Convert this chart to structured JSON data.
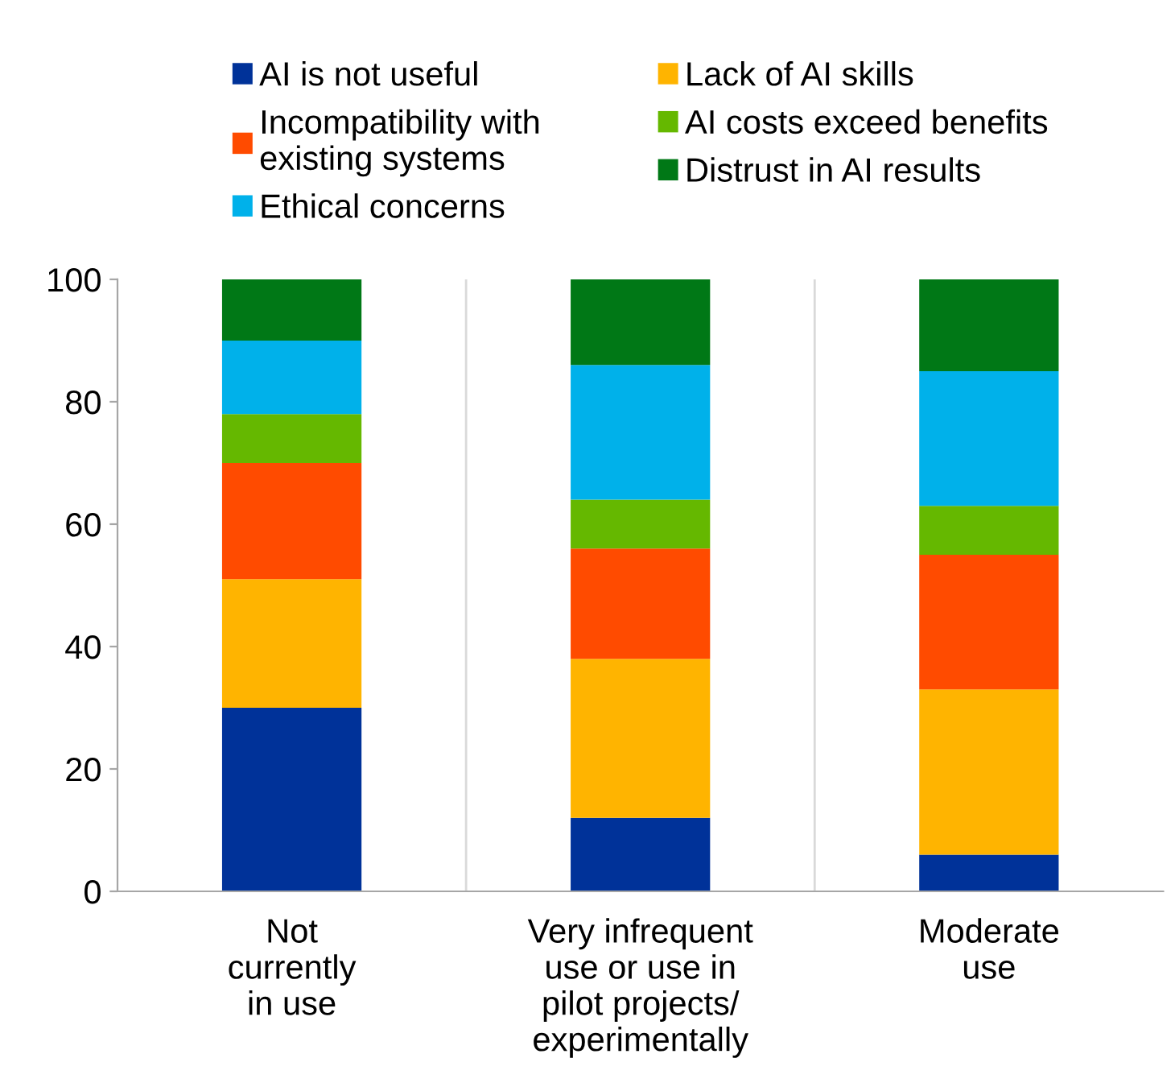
{
  "chart_data": {
    "type": "bar",
    "stacked": true,
    "categories": [
      "Not\ncurrently\nin use",
      "Very infrequent\nuse or use in\npilot projects/\nexperimentally",
      "Moderate\nuse"
    ],
    "series": [
      {
        "name": "AI is not useful",
        "color": "#003299",
        "values": [
          30,
          12,
          6
        ]
      },
      {
        "name": "Lack of AI skills",
        "color": "#ffb400",
        "values": [
          21,
          26,
          27
        ]
      },
      {
        "name": "Incompatibility with\nexisting systems",
        "color": "#ff4b00",
        "values": [
          19,
          18,
          22
        ]
      },
      {
        "name": "AI costs exceed benefits",
        "color": "#65b800",
        "values": [
          8,
          8,
          8
        ]
      },
      {
        "name": "Ethical concerns",
        "color": "#00b1ea",
        "values": [
          12,
          22,
          22
        ]
      },
      {
        "name": "Distrust in AI results",
        "color": "#007816",
        "values": [
          10,
          14,
          15
        ]
      }
    ],
    "ylim": [
      0,
      100
    ],
    "yticks": [
      0,
      20,
      40,
      60,
      80,
      100
    ],
    "grid": "x",
    "legend": "top"
  }
}
